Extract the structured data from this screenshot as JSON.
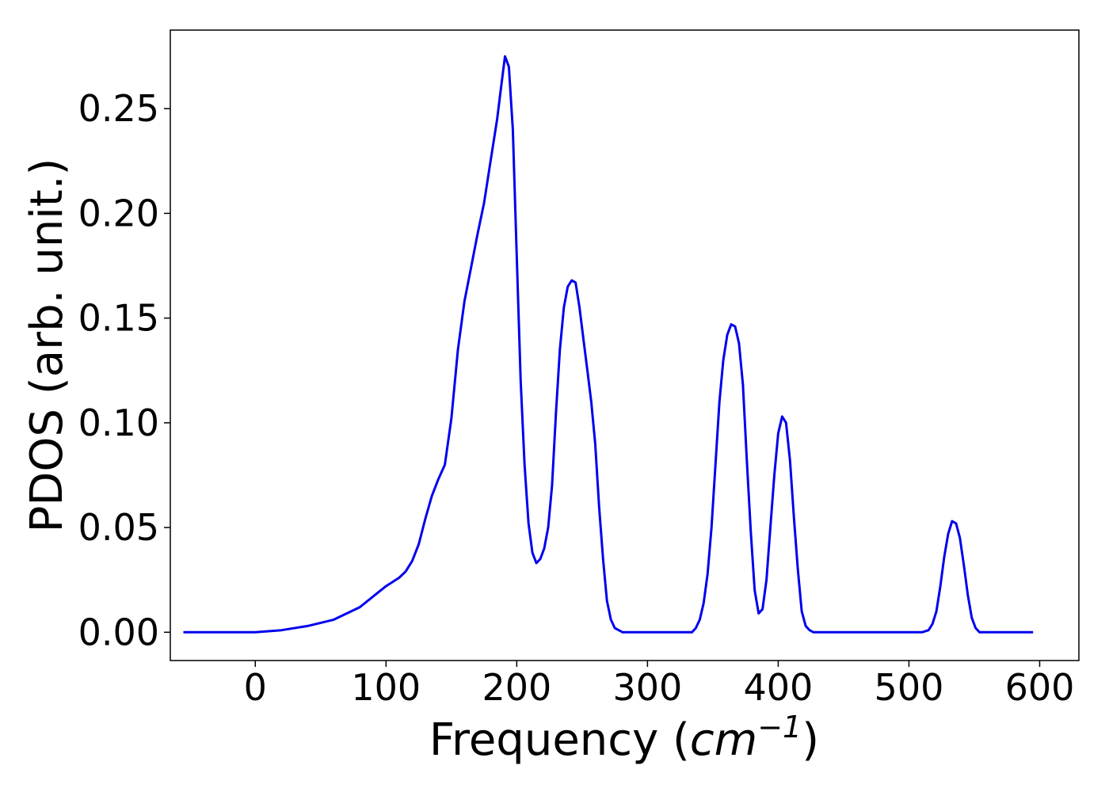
{
  "chart_data": {
    "type": "line",
    "title": "",
    "xlabel": "Frequency",
    "xlabel_unit_base": "cm",
    "xlabel_unit_exp": "−1",
    "ylabel": "PDOS (arb. unit.)",
    "xlim": [
      -65,
      630
    ],
    "ylim": [
      -0.0135,
      0.2875
    ],
    "xticks": [
      0,
      100,
      200,
      300,
      400,
      500,
      600
    ],
    "xtick_labels": [
      "0",
      "100",
      "200",
      "300",
      "400",
      "500",
      "600"
    ],
    "yticks": [
      0.0,
      0.05,
      0.1,
      0.15,
      0.2,
      0.25
    ],
    "ytick_labels": [
      "0.00",
      "0.05",
      "0.10",
      "0.15",
      "0.20",
      "0.25"
    ],
    "grid": false,
    "legend": "none",
    "series": [
      {
        "color": "#0000ee",
        "x": [
          -55,
          0,
          20,
          40,
          60,
          80,
          90,
          100,
          110,
          115,
          120,
          125,
          130,
          135,
          140,
          145,
          150,
          155,
          160,
          165,
          170,
          175,
          180,
          185,
          188,
          191,
          194,
          197,
          200,
          203,
          206,
          209,
          212,
          215,
          218,
          221,
          224,
          227,
          230,
          233,
          236,
          239,
          242,
          245,
          248,
          251,
          254,
          257,
          260,
          263,
          266,
          269,
          272,
          275,
          278,
          281,
          284,
          290,
          300,
          320,
          330,
          334,
          337,
          340,
          343,
          346,
          349,
          352,
          355,
          358,
          361,
          364,
          367,
          370,
          373,
          376,
          379,
          382,
          385,
          388,
          391,
          394,
          397,
          400,
          403,
          406,
          409,
          412,
          415,
          418,
          421,
          424,
          427,
          430,
          435,
          450,
          500,
          510,
          515,
          518,
          521,
          524,
          527,
          530,
          533,
          536,
          539,
          542,
          545,
          548,
          551,
          554,
          557,
          560,
          570,
          595
        ],
        "y": [
          0.0,
          0.0,
          0.001,
          0.003,
          0.006,
          0.012,
          0.017,
          0.022,
          0.026,
          0.029,
          0.034,
          0.042,
          0.054,
          0.065,
          0.073,
          0.08,
          0.102,
          0.135,
          0.158,
          0.174,
          0.19,
          0.205,
          0.225,
          0.245,
          0.26,
          0.275,
          0.27,
          0.24,
          0.18,
          0.12,
          0.08,
          0.052,
          0.038,
          0.033,
          0.035,
          0.04,
          0.05,
          0.07,
          0.105,
          0.135,
          0.155,
          0.165,
          0.168,
          0.167,
          0.155,
          0.14,
          0.125,
          0.11,
          0.09,
          0.06,
          0.035,
          0.015,
          0.006,
          0.002,
          0.001,
          0.0,
          0.0,
          0.0,
          0.0,
          0.0,
          0.0,
          0.0,
          0.002,
          0.006,
          0.014,
          0.028,
          0.05,
          0.08,
          0.11,
          0.13,
          0.142,
          0.147,
          0.146,
          0.138,
          0.118,
          0.082,
          0.048,
          0.02,
          0.009,
          0.011,
          0.025,
          0.05,
          0.075,
          0.095,
          0.103,
          0.1,
          0.082,
          0.055,
          0.03,
          0.01,
          0.003,
          0.001,
          0.0,
          0.0,
          0.0,
          0.0,
          0.0,
          0.0,
          0.001,
          0.004,
          0.01,
          0.022,
          0.036,
          0.047,
          0.053,
          0.052,
          0.045,
          0.032,
          0.018,
          0.007,
          0.002,
          0.0,
          0.0,
          0.0,
          0.0,
          0.0
        ]
      }
    ]
  }
}
